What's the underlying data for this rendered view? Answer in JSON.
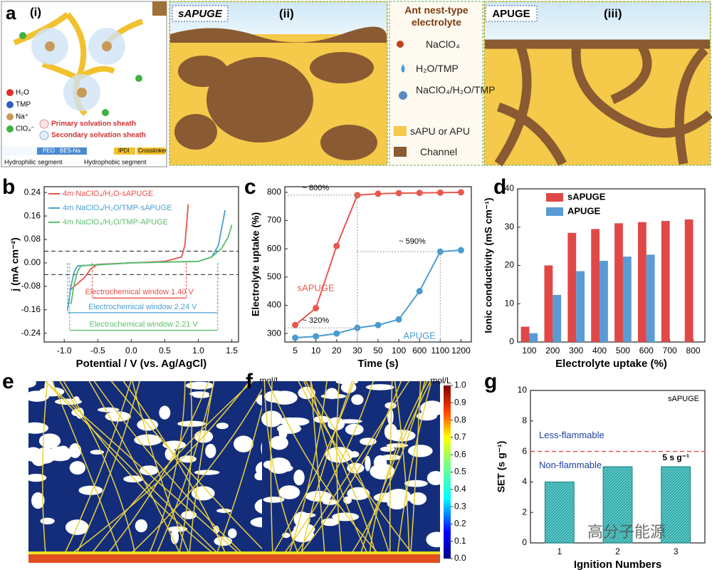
{
  "panel_a": {
    "letter": "a",
    "sub_i": "(i)",
    "sub_ii": "(ii)",
    "sub_iii": "(iii)",
    "left_tag": "sAPUGE",
    "right_tag": "APUGE",
    "legend_title": "Ant nest-type electrolyte",
    "legend": [
      "NaClO₄",
      "H₂O/TMP",
      "NaClO₄/H₂O/TMP",
      "sAPU or APU",
      "Channel"
    ],
    "species": [
      "H₂O",
      "TMP",
      "Na⁺",
      "ClO₄⁻"
    ],
    "sheaths": [
      "Primary solvation sheath",
      "Secondary solvation sheath"
    ],
    "segments": [
      "PEO",
      "BES-Na",
      "IPDI",
      "Crosslinker"
    ],
    "segment_types": [
      "Hydrophilic segment",
      "Hydrophobic segment"
    ]
  },
  "chart_data": [
    {
      "type": "line",
      "panel": "b",
      "xlabel": "Potential / V (vs. Ag/AgCl)",
      "ylabel": "j (mA cm⁻²)",
      "legend": "top-left",
      "xlim": [
        -1.3,
        1.6
      ],
      "xticks": [
        {
          "value": -1,
          "label": "-1.0"
        },
        {
          "value": -0.5,
          "label": "-0.5"
        },
        {
          "value": 0,
          "label": "0.0"
        },
        {
          "value": 0.5,
          "label": "0.5"
        },
        {
          "value": 1,
          "label": "1.0"
        },
        {
          "value": 1.5,
          "label": "1.5"
        }
      ],
      "ylim": [
        -0.27,
        0.26
      ],
      "yticks": [
        -0.24,
        -0.16,
        -0.08,
        {
          "value": 0,
          "label": "0.00"
        },
        0.08,
        0.16,
        0.24
      ],
      "hlines": [
        0.04,
        -0.04
      ],
      "series": [
        {
          "name": "4m NaClO₄/H₂O-sAPUGE",
          "color": "#e8504a",
          "x": [
            -0.9,
            -0.7,
            -0.6,
            -0.5,
            0,
            0.5,
            0.75,
            0.8,
            0.85
          ],
          "values": [
            -0.09,
            -0.05,
            -0.02,
            -0.005,
            0,
            0.005,
            0.02,
            0.06,
            0.2
          ]
        },
        {
          "name": "4m NaClO₄/H₂O/TMP-sAPUGE",
          "color": "#4aa0d0",
          "x": [
            -0.95,
            -0.9,
            -0.85,
            -0.8,
            0,
            1.0,
            1.2,
            1.3,
            1.35,
            1.4
          ],
          "values": [
            -0.16,
            -0.08,
            -0.03,
            -0.01,
            0,
            0.005,
            0.02,
            0.06,
            0.12,
            0.18
          ]
        },
        {
          "name": "4m NaClO₄/H₂O/TMP-APUGE",
          "color": "#5cbf6a",
          "x": [
            -0.9,
            -0.85,
            -0.8,
            -0.75,
            0,
            1.0,
            1.2,
            1.35,
            1.45,
            1.5
          ],
          "values": [
            -0.14,
            -0.07,
            -0.03,
            -0.01,
            0,
            0.005,
            0.02,
            0.05,
            0.09,
            0.13
          ]
        }
      ],
      "windows": [
        {
          "label": "Electrochemical window 1.40 V",
          "color": "#e8504a",
          "range": [
            -0.58,
            0.82
          ],
          "y": -0.12
        },
        {
          "label": "Electrochemical window 2.24 V",
          "color": "#4aa0d0",
          "range": [
            -0.95,
            1.29
          ],
          "y": -0.17
        },
        {
          "label": "Electrochemical window 2.21 V",
          "color": "#5cbf6a",
          "range": [
            -0.92,
            1.29
          ],
          "y": -0.23
        }
      ]
    },
    {
      "type": "line",
      "panel": "c",
      "xlabel": "Time (s)",
      "ylabel": "Electrolyte uptake (%)",
      "categories": [
        "5",
        "10",
        "20",
        "30",
        "50",
        "100",
        "600",
        "1100",
        "1200"
      ],
      "ylim": [
        270,
        820
      ],
      "yticks": [
        300,
        400,
        500,
        600,
        700,
        800
      ],
      "series": [
        {
          "name": "sAPUGE",
          "color": "#e8584f",
          "values": [
            330,
            390,
            610,
            790,
            795,
            797,
            798,
            799,
            800
          ]
        },
        {
          "name": "APUGE",
          "color": "#4a9bd1",
          "values": [
            285,
            290,
            300,
            320,
            330,
            350,
            450,
            590,
            595
          ]
        }
      ],
      "annotations": [
        "~ 800%",
        "~ 320%",
        "~ 590%"
      ]
    },
    {
      "type": "bar",
      "panel": "d",
      "xlabel": "Electrolyte uptake (%)",
      "ylabel": "Ionic conductivity (mS cm⁻¹)",
      "legend": "top-left",
      "categories": [
        "100",
        "200",
        "300",
        "400",
        "500",
        "600",
        "700",
        "800"
      ],
      "ylim": [
        0,
        40
      ],
      "yticks": [
        0,
        10,
        20,
        30,
        40
      ],
      "series": [
        {
          "name": "sAPUGE",
          "color": "#e04848",
          "values": [
            4,
            20,
            28.5,
            29.5,
            31,
            31.3,
            31.6,
            32
          ]
        },
        {
          "name": "APUGE",
          "color": "#5b9bd5",
          "values": [
            2.3,
            12.3,
            18.5,
            21.2,
            22.3,
            22.8,
            null,
            null
          ]
        }
      ]
    },
    {
      "type": "heatmap",
      "panel": "e",
      "unit": "mol/L",
      "zlim": [
        0,
        1
      ],
      "zticks": [
        {
          "value": 0,
          "label": "0.0"
        },
        0.1,
        0.2,
        0.3,
        0.4,
        0.5,
        0.6,
        0.7,
        0.8,
        0.9,
        {
          "value": 1,
          "label": "1.0"
        }
      ]
    },
    {
      "type": "heatmap",
      "panel": "f",
      "unit": "mol/L",
      "zlim": [
        0,
        1
      ],
      "zticks": [
        {
          "value": 0,
          "label": "0.0"
        },
        0.1,
        0.2,
        0.3,
        0.4,
        0.5,
        0.6,
        0.7,
        0.8,
        0.9,
        {
          "value": 1,
          "label": "1.0"
        }
      ]
    },
    {
      "type": "bar",
      "panel": "g",
      "xlabel": "Ignition Numbers",
      "ylabel": "SET (s g⁻¹)",
      "tag": "sAPUGE",
      "categories": [
        "1",
        "2",
        "3"
      ],
      "values": [
        4,
        5,
        5
      ],
      "value_labels": [
        null,
        null,
        "5 s g⁻¹"
      ],
      "color": "#2aa8a8",
      "ylim": [
        0,
        10
      ],
      "yticks": [
        0,
        2,
        4,
        6,
        8,
        10
      ],
      "threshold": 6,
      "threshold_labels": [
        "Less-flammable",
        "Non-flammable"
      ]
    }
  ],
  "watermark": "高分子能源"
}
